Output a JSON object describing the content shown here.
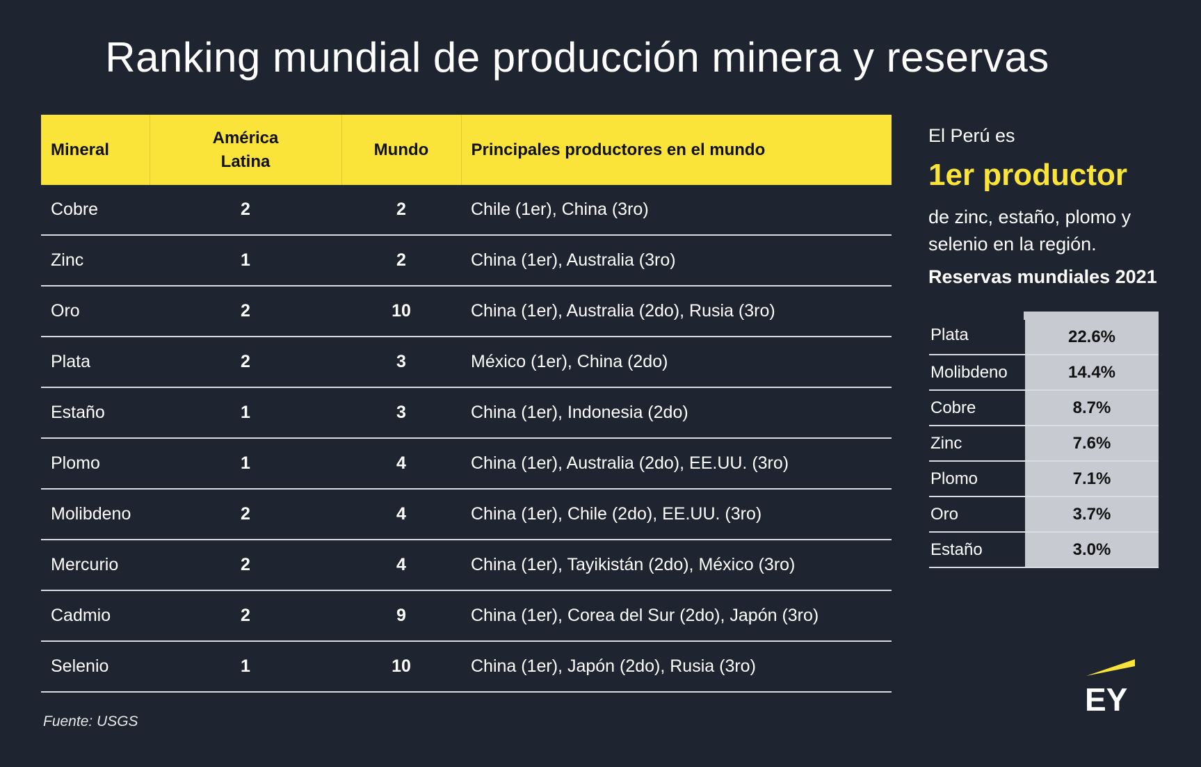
{
  "title": "Ranking mundial de producción minera y reservas",
  "table": {
    "headers": {
      "mineral": "Mineral",
      "latam": "América Latina",
      "world": "Mundo",
      "producers": "Principales productores en el mundo"
    },
    "rows": [
      {
        "mineral": "Cobre",
        "latam": "2",
        "world": "2",
        "producers": "Chile (1er), China (3ro)"
      },
      {
        "mineral": "Zinc",
        "latam": "1",
        "world": "2",
        "producers": "China (1er), Australia (3ro)"
      },
      {
        "mineral": "Oro",
        "latam": "2",
        "world": "10",
        "producers": "China (1er), Australia (2do), Rusia (3ro)"
      },
      {
        "mineral": "Plata",
        "latam": "2",
        "world": "3",
        "producers": "México (1er), China (2do)"
      },
      {
        "mineral": "Estaño",
        "latam": "1",
        "world": "3",
        "producers": "China (1er), Indonesia (2do)"
      },
      {
        "mineral": "Plomo",
        "latam": "1",
        "world": "4",
        "producers": "China (1er), Australia (2do), EE.UU. (3ro)"
      },
      {
        "mineral": "Molibdeno",
        "latam": "2",
        "world": "4",
        "producers": "China (1er), Chile (2do), EE.UU. (3ro)"
      },
      {
        "mineral": "Mercurio",
        "latam": "2",
        "world": "4",
        "producers": "China (1er), Tayikistán (2do), México (3ro)"
      },
      {
        "mineral": "Cadmio",
        "latam": "2",
        "world": "9",
        "producers": "China (1er), Corea del Sur (2do), Japón (3ro)"
      },
      {
        "mineral": "Selenio",
        "latam": "1",
        "world": "10",
        "producers": "China (1er), Japón (2do), Rusia (3ro)"
      }
    ]
  },
  "source": "Fuente: USGS",
  "side": {
    "intro": "El Perú es",
    "highlight": "1er productor",
    "description": "de zinc, estaño, plomo y selenio en la región.",
    "reserves_title": "Reservas mundiales 2021",
    "reserves": [
      {
        "name": "Plata",
        "value": "22.6%"
      },
      {
        "name": "Molibdeno",
        "value": "14.4%"
      },
      {
        "name": "Cobre",
        "value": "8.7%"
      },
      {
        "name": "Zinc",
        "value": "7.6%"
      },
      {
        "name": "Plomo",
        "value": "7.1%"
      },
      {
        "name": "Oro",
        "value": "3.7%"
      },
      {
        "name": "Estaño",
        "value": "3.0%"
      }
    ]
  },
  "logo": {
    "text": "EY",
    "accent_color": "#fbe43a"
  },
  "colors": {
    "background": "#1e2530",
    "header_yellow": "#fbe43a",
    "reserve_cell": "#c8cad2"
  }
}
